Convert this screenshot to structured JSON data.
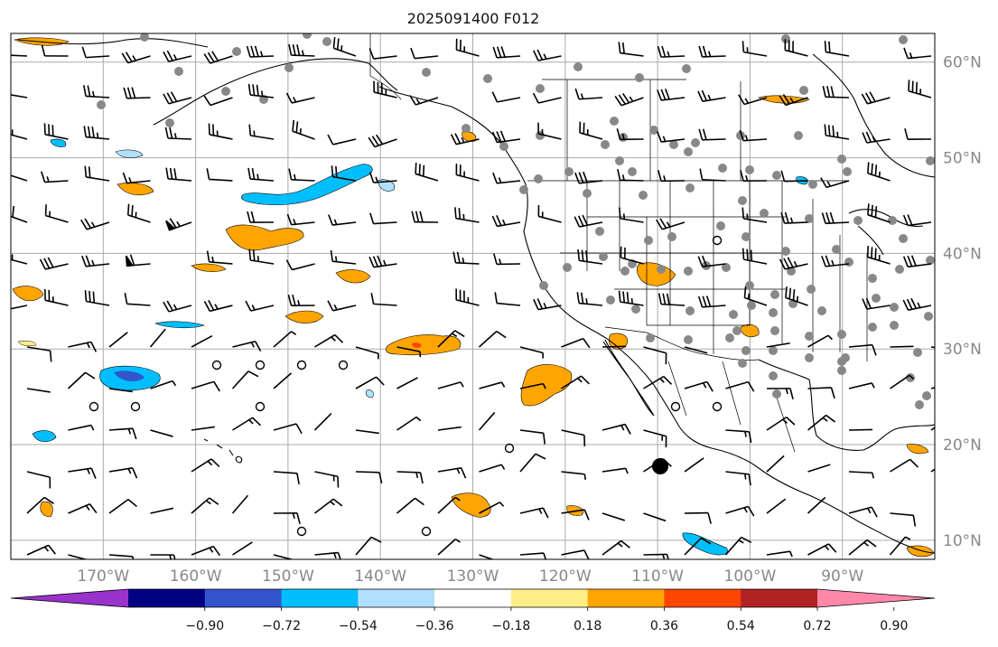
{
  "title": "2025091400 F012",
  "lon_ticks": [
    "170°W",
    "160°W",
    "150°W",
    "140°W",
    "130°W",
    "120°W",
    "110°W",
    "100°W",
    "90°W"
  ],
  "lat_ticks": [
    "60°N",
    "50°N",
    "40°N",
    "30°N",
    "20°N",
    "10°N"
  ],
  "map_extent": {
    "lon_min": -180,
    "lon_max": -80,
    "lat_min": 8,
    "lat_max": 63
  },
  "colorbar": {
    "tick_labels": [
      "−0.90",
      "−0.72",
      "−0.54",
      "−0.36",
      "−0.18",
      "0.18",
      "0.36",
      "0.54",
      "0.72",
      "0.90"
    ],
    "colors": [
      "#9933cc",
      "#000080",
      "#3355cc",
      "#00bfff",
      "#b0e0ff",
      "#ffffff",
      "#ffee88",
      "#ffa500",
      "#ff4500",
      "#b22222",
      "#ff88aa"
    ]
  },
  "colors": {
    "grid": "#aaaaaa",
    "coast": "#000000",
    "station_dot": "#888888",
    "axis_label": "#888888"
  }
}
